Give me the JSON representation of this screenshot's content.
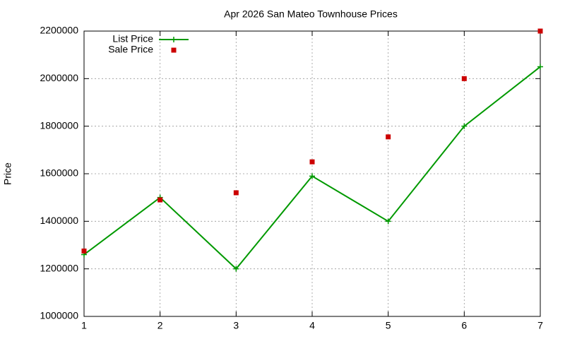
{
  "chart_data": {
    "type": "line",
    "title": "Apr 2026 San Mateo Townhouse Prices",
    "y_label": "Price",
    "x": [
      1,
      2,
      3,
      4,
      5,
      6,
      7
    ],
    "series": [
      {
        "name": "List Price",
        "color": "#009900",
        "style": "linespoints",
        "values": [
          1260000,
          1500000,
          1200000,
          1590000,
          1400000,
          1800000,
          2050000
        ]
      },
      {
        "name": "Sale Price",
        "color": "#cc0000",
        "style": "points",
        "values": [
          1275000,
          1490000,
          1520000,
          1650000,
          1755000,
          2000000,
          2200000
        ]
      }
    ],
    "xlim": [
      1,
      7
    ],
    "xticks": [
      1,
      2,
      3,
      4,
      5,
      6,
      7
    ],
    "ylim": [
      1000000,
      2200000
    ],
    "yticks": [
      1000000,
      1200000,
      1400000,
      1600000,
      1800000,
      2000000,
      2200000
    ],
    "grid": true,
    "legend": "top-left"
  }
}
